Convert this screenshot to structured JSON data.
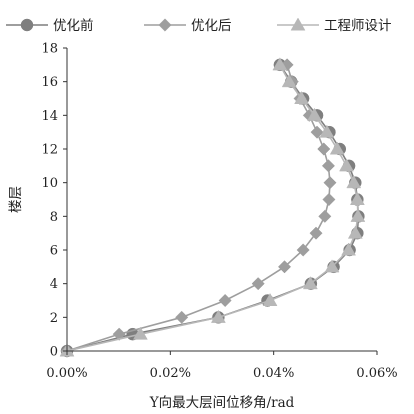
{
  "chart_data": {
    "type": "line",
    "xlabel": "Y向最大层间位移角/rad",
    "ylabel": "楼层",
    "xlim": [
      0,
      0.06
    ],
    "ylim": [
      0,
      18
    ],
    "x_ticks": [
      "0.00%",
      "0.02%",
      "0.04%",
      "0.06%"
    ],
    "x_tick_values": [
      0,
      0.02,
      0.04,
      0.06
    ],
    "y_ticks": [
      "0",
      "2",
      "4",
      "6",
      "8",
      "10",
      "12",
      "14",
      "16",
      "18"
    ],
    "y_tick_values": [
      0,
      2,
      4,
      6,
      8,
      10,
      12,
      14,
      16,
      18
    ],
    "grid": false,
    "legend_position": "top",
    "series": [
      {
        "name": "优化前",
        "marker": "circle",
        "color": "#7f7f7f",
        "points": [
          [
            0,
            0
          ],
          [
            0.0127,
            1
          ],
          [
            0.0293,
            2
          ],
          [
            0.0388,
            3
          ],
          [
            0.0472,
            4
          ],
          [
            0.0516,
            5
          ],
          [
            0.0547,
            6
          ],
          [
            0.0562,
            7
          ],
          [
            0.0564,
            8
          ],
          [
            0.0562,
            9
          ],
          [
            0.0558,
            10
          ],
          [
            0.0546,
            11
          ],
          [
            0.0528,
            12
          ],
          [
            0.0508,
            13
          ],
          [
            0.0484,
            14
          ],
          [
            0.0457,
            15
          ],
          [
            0.0434,
            16
          ],
          [
            0.0412,
            17
          ]
        ]
      },
      {
        "name": "优化后",
        "marker": "diamond",
        "color": "#9e9e9e",
        "points": [
          [
            0,
            0
          ],
          [
            0.0101,
            1
          ],
          [
            0.0222,
            2
          ],
          [
            0.0306,
            3
          ],
          [
            0.037,
            4
          ],
          [
            0.0421,
            5
          ],
          [
            0.0457,
            6
          ],
          [
            0.0482,
            7
          ],
          [
            0.0499,
            8
          ],
          [
            0.0507,
            9
          ],
          [
            0.0509,
            10
          ],
          [
            0.0506,
            11
          ],
          [
            0.0497,
            12
          ],
          [
            0.0484,
            13
          ],
          [
            0.0469,
            14
          ],
          [
            0.0451,
            15
          ],
          [
            0.0436,
            16
          ],
          [
            0.0426,
            17
          ]
        ]
      },
      {
        "name": "工程师设计",
        "marker": "triangle",
        "color": "#b7b7b7",
        "points": [
          [
            0,
            0
          ],
          [
            0.0142,
            1
          ],
          [
            0.0293,
            2
          ],
          [
            0.0393,
            3
          ],
          [
            0.0471,
            4
          ],
          [
            0.0513,
            5
          ],
          [
            0.0545,
            6
          ],
          [
            0.0558,
            7
          ],
          [
            0.0563,
            8
          ],
          [
            0.0562,
            9
          ],
          [
            0.0555,
            10
          ],
          [
            0.0541,
            11
          ],
          [
            0.0523,
            12
          ],
          [
            0.0503,
            13
          ],
          [
            0.0479,
            14
          ],
          [
            0.0454,
            15
          ],
          [
            0.043,
            16
          ],
          [
            0.0412,
            17
          ]
        ]
      }
    ]
  }
}
